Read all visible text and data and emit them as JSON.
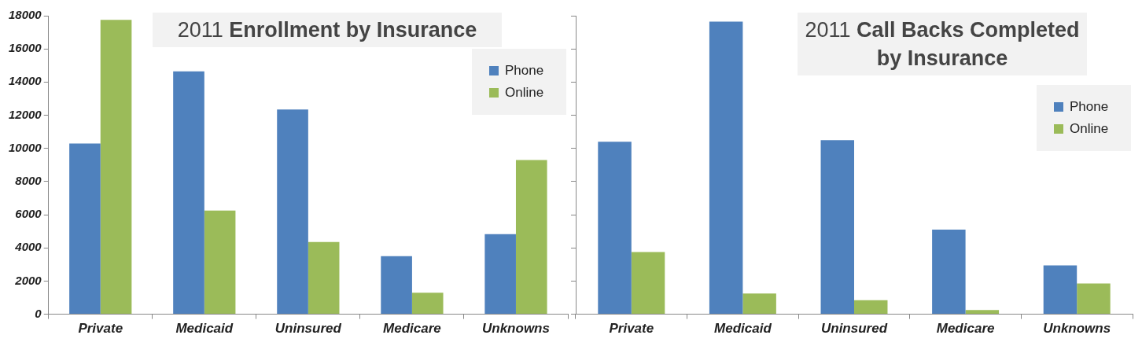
{
  "chart_data": [
    {
      "type": "bar",
      "title": "2011 Enrollment by Insurance",
      "categories": [
        "Private",
        "Medicaid",
        "Uninsured",
        "Medicare",
        "Unknowns"
      ],
      "series": [
        {
          "name": "Phone",
          "color": "#4f81bd",
          "values": [
            10300,
            14650,
            12350,
            3500,
            4830
          ]
        },
        {
          "name": "Online",
          "color": "#9bbb59",
          "values": [
            17750,
            6250,
            4350,
            1300,
            9300
          ]
        }
      ],
      "ylim": [
        0,
        18000
      ],
      "yticks": [
        0,
        2000,
        4000,
        6000,
        8000,
        10000,
        12000,
        14000,
        16000,
        18000
      ],
      "grid": false,
      "legend": "top right"
    },
    {
      "type": "bar",
      "title": "2011 Call Backs Completed by Insurance",
      "categories": [
        "Private",
        "Medicaid",
        "Uninsured",
        "Medicare",
        "Unknowns"
      ],
      "series": [
        {
          "name": "Phone",
          "color": "#4f81bd",
          "values": [
            10400,
            17650,
            10500,
            5100,
            2950
          ]
        },
        {
          "name": "Online",
          "color": "#9bbb59",
          "values": [
            3750,
            1250,
            850,
            250,
            1850
          ]
        }
      ],
      "ylim": [
        0,
        18000
      ],
      "yticks": [
        0,
        2000,
        4000,
        6000,
        8000,
        10000,
        12000,
        14000,
        16000,
        18000
      ],
      "grid": false,
      "legend": "top right",
      "tick_labels": "x"
    }
  ]
}
